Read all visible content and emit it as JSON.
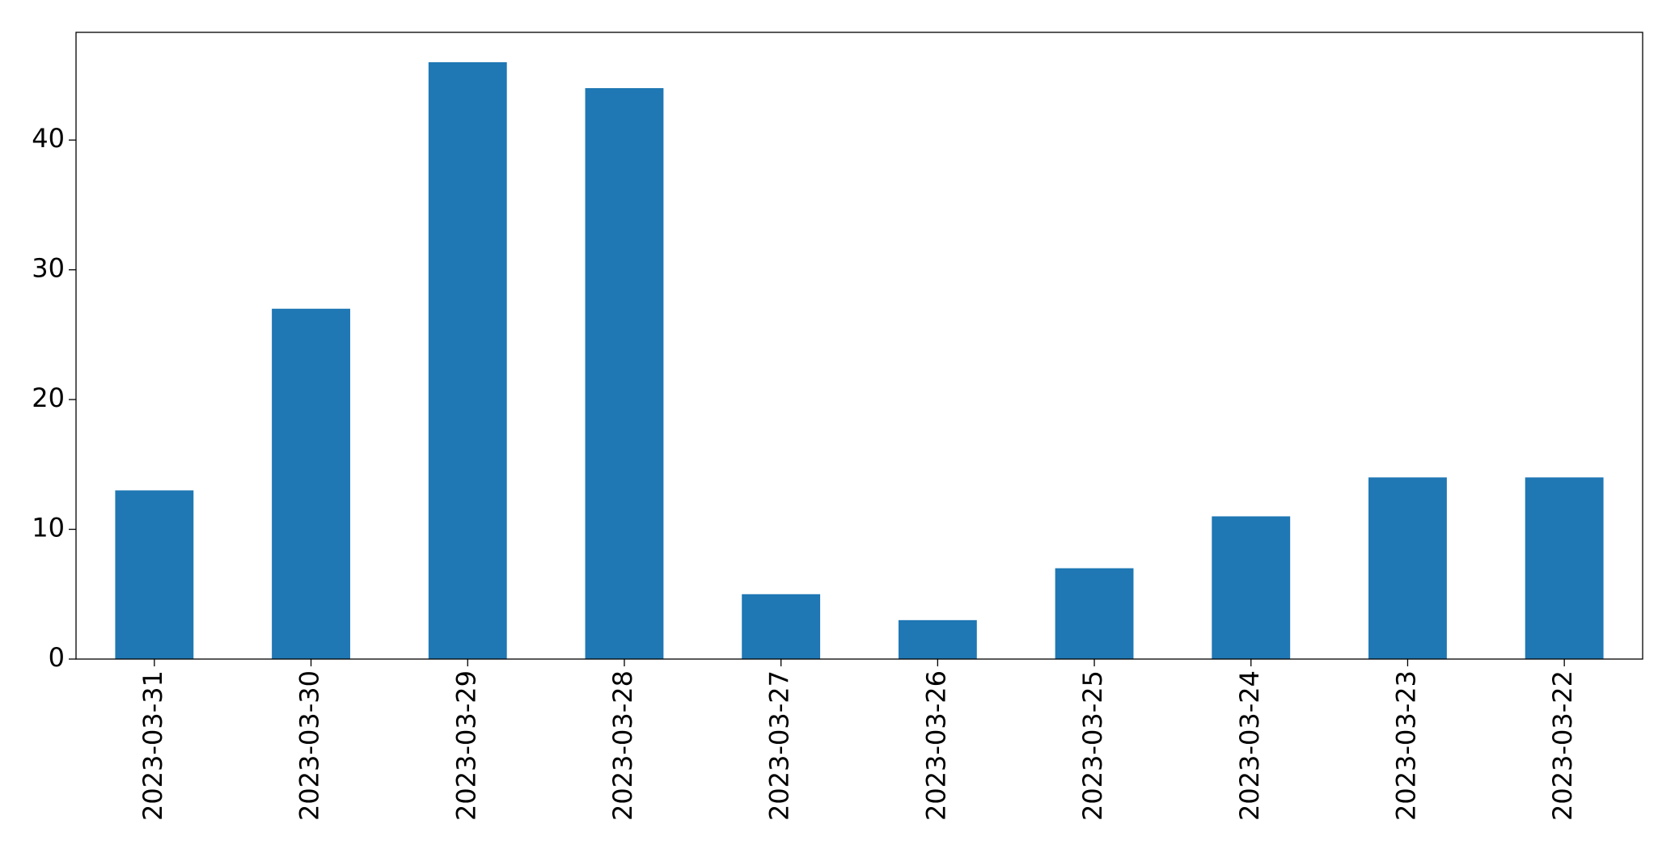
{
  "chart_data": {
    "type": "bar",
    "categories": [
      "2023-03-31",
      "2023-03-30",
      "2023-03-29",
      "2023-03-28",
      "2023-03-27",
      "2023-03-26",
      "2023-03-25",
      "2023-03-24",
      "2023-03-23",
      "2023-03-22"
    ],
    "values": [
      13,
      27,
      46,
      44,
      5,
      3,
      7,
      11,
      14,
      14
    ],
    "color": "#1f77b4",
    "ylim": [
      0,
      48.3
    ],
    "yticks": [
      0,
      10,
      20,
      30,
      40
    ],
    "grid": false
  }
}
